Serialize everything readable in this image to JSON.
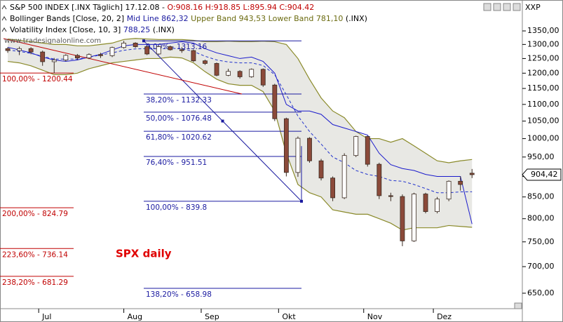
{
  "chart_data": {
    "type": "candlestick",
    "header": [
      [
        {
          "text": "S&P 500 INDEX [.INX  Täglich] 17.12.08 - ",
          "color": "#000000"
        },
        {
          "text": "O:908.16 H:918.85 L:895.94 C:904.42",
          "color": "#c00000"
        }
      ],
      [
        {
          "text": "Bollinger Bands [Close, 20, 2] ",
          "color": "#000000"
        },
        {
          "text": "Mid Line 862,32 ",
          "color": "#1a1aa0"
        },
        {
          "text": "Upper Band 943,53 Lower Band 781,10 ",
          "color": "#6b6b10"
        },
        {
          "text": "(.INX)",
          "color": "#000000"
        }
      ],
      [
        {
          "text": "Volatility Index [Close, 10, 3] ",
          "color": "#000000"
        },
        {
          "text": "788,25 ",
          "color": "#1a1aa0"
        },
        {
          "text": "(.INX)",
          "color": "#000000"
        }
      ]
    ],
    "watermark": "www.tradesignalonline.com",
    "annotation": "SPX daily",
    "symbol": "XXP",
    "last_price_label": "904,42",
    "log_scale": true,
    "x": [
      0,
      3,
      6,
      9,
      12,
      15,
      18,
      21,
      24,
      27,
      30,
      33,
      36,
      39,
      42,
      45,
      48,
      51,
      54,
      57,
      60,
      63,
      66,
      69,
      72,
      75,
      78,
      81,
      84,
      87,
      90,
      93,
      96,
      99,
      102,
      105,
      108,
      111,
      114,
      117,
      120
    ],
    "open": [
      1285,
      1278,
      1285,
      1273,
      1239,
      1245,
      1261,
      1252,
      1264,
      1260,
      1289,
      1305,
      1292,
      1266,
      1292,
      1281,
      1278,
      1242,
      1233,
      1193,
      1206,
      1188,
      1213,
      1161,
      1057,
      910,
      1001,
      940,
      896,
      848,
      954,
      1006,
      931,
      853,
      851,
      752,
      857,
      816,
      845,
      888,
      908.16
    ],
    "high": [
      1290,
      1292,
      1290,
      1278,
      1252,
      1265,
      1266,
      1268,
      1270,
      1292,
      1313,
      1308,
      1295,
      1295,
      1296,
      1290,
      1282,
      1246,
      1236,
      1215,
      1210,
      1216,
      1216,
      1165,
      1060,
      1006,
      1004,
      945,
      900,
      960,
      1008,
      1008,
      935,
      860,
      856,
      860,
      860,
      850,
      890,
      900,
      918.85
    ],
    "low": [
      1270,
      1262,
      1265,
      1225,
      1200,
      1240,
      1245,
      1248,
      1252,
      1255,
      1285,
      1288,
      1262,
      1262,
      1278,
      1270,
      1238,
      1228,
      1190,
      1190,
      1182,
      1185,
      1155,
      1050,
      900,
      899,
      935,
      890,
      840,
      845,
      950,
      925,
      845,
      840,
      741,
      750,
      812,
      812,
      840,
      865,
      895.94
    ],
    "close": [
      1278,
      1285,
      1273,
      1239,
      1245,
      1261,
      1252,
      1264,
      1260,
      1289,
      1305,
      1292,
      1266,
      1292,
      1281,
      1278,
      1242,
      1233,
      1193,
      1206,
      1188,
      1213,
      1161,
      1057,
      910,
      1001,
      940,
      896,
      848,
      954,
      1006,
      931,
      853,
      851,
      752,
      857,
      816,
      845,
      888,
      880,
      904.42
    ],
    "candle_colors": {
      "up": "#ffffff",
      "down": "#8b4a3a",
      "outline": "#3a2a20"
    },
    "bands": {
      "color": "#8a8a2a",
      "fill": "#e8e8e4",
      "mid_color": "#2233cc",
      "upper": [
        1320,
        1315,
        1310,
        1305,
        1300,
        1300,
        1295,
        1295,
        1300,
        1305,
        1318,
        1322,
        1320,
        1318,
        1318,
        1318,
        1315,
        1310,
        1310,
        1312,
        1310,
        1310,
        1312,
        1310,
        1300,
        1250,
        1180,
        1120,
        1080,
        1060,
        1020,
        1000,
        1000,
        990,
        1000,
        980,
        960,
        940,
        935,
        940,
        943.53
      ],
      "mid": [
        1280,
        1275,
        1268,
        1258,
        1248,
        1248,
        1248,
        1255,
        1262,
        1270,
        1279,
        1284,
        1285,
        1284,
        1286,
        1285,
        1275,
        1258,
        1245,
        1238,
        1235,
        1235,
        1226,
        1195,
        1130,
        1065,
        1020,
        985,
        950,
        935,
        915,
        905,
        900,
        890,
        888,
        880,
        870,
        860,
        860,
        862,
        862.32
      ],
      "lower": [
        1240,
        1235,
        1225,
        1210,
        1195,
        1195,
        1200,
        1215,
        1225,
        1235,
        1240,
        1245,
        1250,
        1250,
        1255,
        1252,
        1235,
        1205,
        1180,
        1165,
        1160,
        1160,
        1140,
        1080,
        960,
        880,
        860,
        850,
        820,
        815,
        810,
        810,
        800,
        790,
        775,
        780,
        780,
        780,
        785,
        783,
        781.1
      ]
    },
    "volatility": {
      "color": "#1a1acc",
      "values": [
        1290,
        1280,
        1270,
        1255,
        1245,
        1240,
        1245,
        1255,
        1265,
        1280,
        1295,
        1300,
        1300,
        1300,
        1305,
        1310,
        1305,
        1285,
        1270,
        1260,
        1250,
        1255,
        1240,
        1200,
        1100,
        1080,
        1080,
        1070,
        1040,
        1030,
        1020,
        1010,
        960,
        930,
        920,
        915,
        905,
        900,
        900,
        900,
        788.25
      ]
    },
    "fib_retracement": {
      "color": "#1a1aa0",
      "levels": [
        {
          "value": 1313.16,
          "label": "0,00% - 1313.16"
        },
        {
          "value": 1132.33,
          "label": "38,20% - 1132.33"
        },
        {
          "value": 1076.48,
          "label": "50,00% - 1076.48"
        },
        {
          "value": 1020.62,
          "label": "61,80% - 1020.62"
        },
        {
          "value": 951.51,
          "label": "76,40% - 951.51"
        },
        {
          "value": 839.8,
          "label": "100,00% - 839.8"
        },
        {
          "value": 658.98,
          "label": "138,20% - 658.98"
        }
      ]
    },
    "fib_extension": {
      "color": "#c00000",
      "levels": [
        {
          "value": 1200.44,
          "label": "100,00% - 1200.44"
        },
        {
          "value": 824.79,
          "label": "200,00% - 824.79"
        },
        {
          "value": 736.14,
          "label": "223,60% - 736.14"
        },
        {
          "value": 681.29,
          "label": "238,20% - 681.29"
        }
      ]
    },
    "xlim": [
      -2,
      133
    ],
    "xticks": [
      {
        "value": 8,
        "label": "Jul"
      },
      {
        "value": 30,
        "label": "Aug"
      },
      {
        "value": 50,
        "label": "Sep"
      },
      {
        "value": 70,
        "label": "Okt"
      },
      {
        "value": 92,
        "label": "Nov"
      },
      {
        "value": 110,
        "label": "Dez"
      }
    ],
    "ylim": [
      622.6,
      1415
    ],
    "yticks": [
      {
        "value": 650,
        "label": "650,00"
      },
      {
        "value": 700,
        "label": "700,00"
      },
      {
        "value": 750,
        "label": "750,00"
      },
      {
        "value": 800,
        "label": "800,00"
      },
      {
        "value": 850,
        "label": "850,00"
      },
      {
        "value": 900,
        "label": "900,00"
      },
      {
        "value": 950,
        "label": "950,00"
      },
      {
        "value": 1000,
        "label": "1000,00"
      },
      {
        "value": 1050,
        "label": "1050,00"
      },
      {
        "value": 1100,
        "label": "1100,00"
      },
      {
        "value": 1150,
        "label": "1150,00"
      },
      {
        "value": 1200,
        "label": "1200,00"
      },
      {
        "value": 1250,
        "label": "1250,00"
      },
      {
        "value": 1300,
        "label": "1300,00"
      },
      {
        "value": 1350,
        "label": "1350,00"
      }
    ]
  }
}
